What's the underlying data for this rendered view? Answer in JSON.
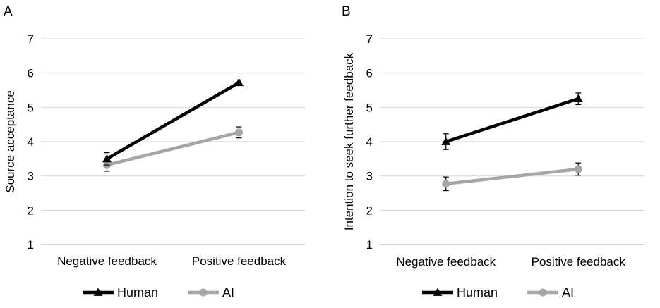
{
  "colors": {
    "human": "#000000",
    "ai": "#a6a6a6",
    "grid": "#d9d9d9",
    "error_bar": "#000000"
  },
  "legend": {
    "items": [
      {
        "name": "Human",
        "marker": "triangle"
      },
      {
        "name": "AI",
        "marker": "circle"
      }
    ]
  },
  "chart_data": [
    {
      "panel": "A",
      "type": "line",
      "title": "",
      "xlabel": "",
      "ylabel": "Source acceptance",
      "ylim": [
        1,
        7
      ],
      "yticks": [
        1,
        2,
        3,
        4,
        5,
        6,
        7
      ],
      "grid": true,
      "categories": [
        "Negative feedback",
        "Positive feedback"
      ],
      "series": [
        {
          "name": "Human",
          "marker": "triangle",
          "values": [
            3.5,
            5.72
          ],
          "error": [
            0.18,
            0.08
          ]
        },
        {
          "name": "AI",
          "marker": "circle",
          "values": [
            3.32,
            4.27
          ],
          "error": [
            0.18,
            0.16
          ]
        }
      ]
    },
    {
      "panel": "B",
      "type": "line",
      "title": "",
      "xlabel": "",
      "ylabel": "Intention to seek further feedback",
      "ylim": [
        1,
        7
      ],
      "yticks": [
        1,
        2,
        3,
        4,
        5,
        6,
        7
      ],
      "grid": true,
      "categories": [
        "Negative feedback",
        "Positive feedback"
      ],
      "series": [
        {
          "name": "Human",
          "marker": "triangle",
          "values": [
            4.0,
            5.25
          ],
          "error": [
            0.23,
            0.17
          ]
        },
        {
          "name": "AI",
          "marker": "circle",
          "values": [
            2.77,
            3.2
          ],
          "error": [
            0.2,
            0.18
          ]
        }
      ]
    }
  ]
}
